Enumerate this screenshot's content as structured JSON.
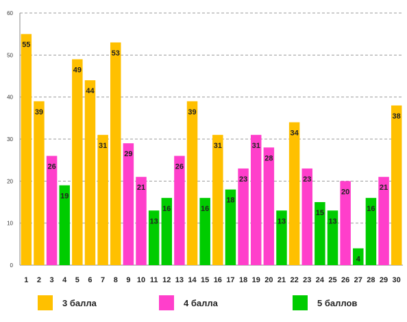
{
  "chart_data": {
    "type": "bar",
    "categories": [
      "1",
      "2",
      "3",
      "4",
      "5",
      "6",
      "7",
      "8",
      "9",
      "10",
      "11",
      "12",
      "13",
      "14",
      "15",
      "16",
      "17",
      "18",
      "19",
      "20",
      "21",
      "22",
      "23",
      "24",
      "25",
      "26",
      "27",
      "28",
      "29",
      "30"
    ],
    "values": [
      55,
      39,
      26,
      19,
      49,
      44,
      31,
      53,
      29,
      21,
      13,
      16,
      26,
      39,
      16,
      31,
      18,
      23,
      31,
      28,
      13,
      34,
      23,
      15,
      13,
      20,
      4,
      16,
      21,
      38
    ],
    "groups": [
      3,
      3,
      4,
      5,
      3,
      3,
      3,
      3,
      4,
      4,
      5,
      5,
      4,
      3,
      5,
      3,
      5,
      4,
      4,
      4,
      5,
      3,
      4,
      5,
      5,
      4,
      5,
      5,
      4,
      3
    ],
    "ylim": [
      0,
      60
    ],
    "yticks": [
      0,
      10,
      20,
      30,
      40,
      50,
      60
    ],
    "grid": true,
    "legend_position": "bottom",
    "series": [
      {
        "name": "3 балла",
        "group": 3,
        "color": "#FFC000"
      },
      {
        "name": "4 балла",
        "group": 4,
        "color": "#FF3FCB"
      },
      {
        "name": "5 баллов",
        "group": 5,
        "color": "#00CC00"
      }
    ]
  }
}
